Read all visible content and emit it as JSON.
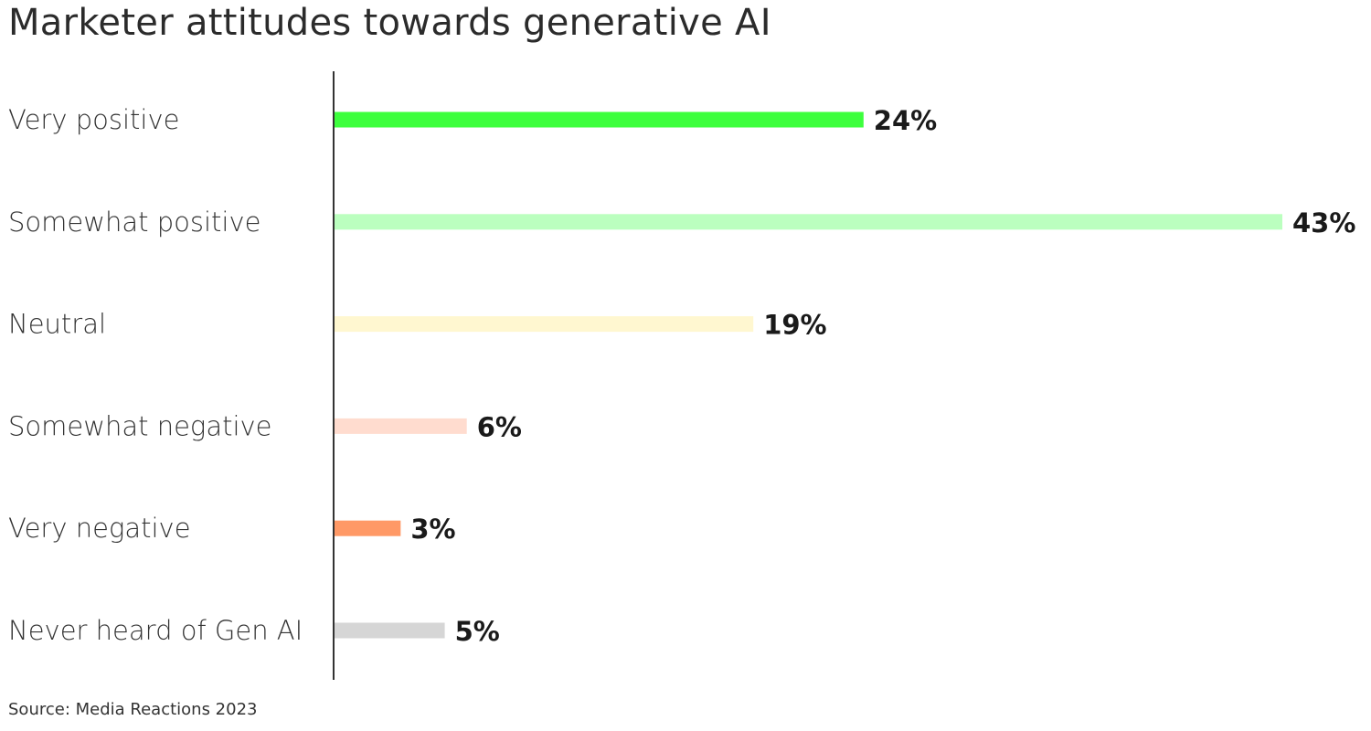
{
  "chart_data": {
    "type": "bar",
    "orientation": "horizontal",
    "title": "Marketer attitudes towards generative AI",
    "source": "Source: Media Reactions 2023",
    "categories": [
      "Very positive",
      "Somewhat positive",
      "Neutral",
      "Somewhat negative",
      "Very negative",
      "Never heard of Gen AI"
    ],
    "values": [
      24,
      43,
      19,
      6,
      3,
      5
    ],
    "data_labels": [
      "24%",
      "43%",
      "19%",
      "6%",
      "3%",
      "5%"
    ],
    "colors": [
      "#3dff3d",
      "#bbffbf",
      "#fff7d0",
      "#ffdccf",
      "#ff9966",
      "#d6d6d6"
    ],
    "xlim": [
      0,
      43
    ],
    "grid": false,
    "legend": "none"
  }
}
